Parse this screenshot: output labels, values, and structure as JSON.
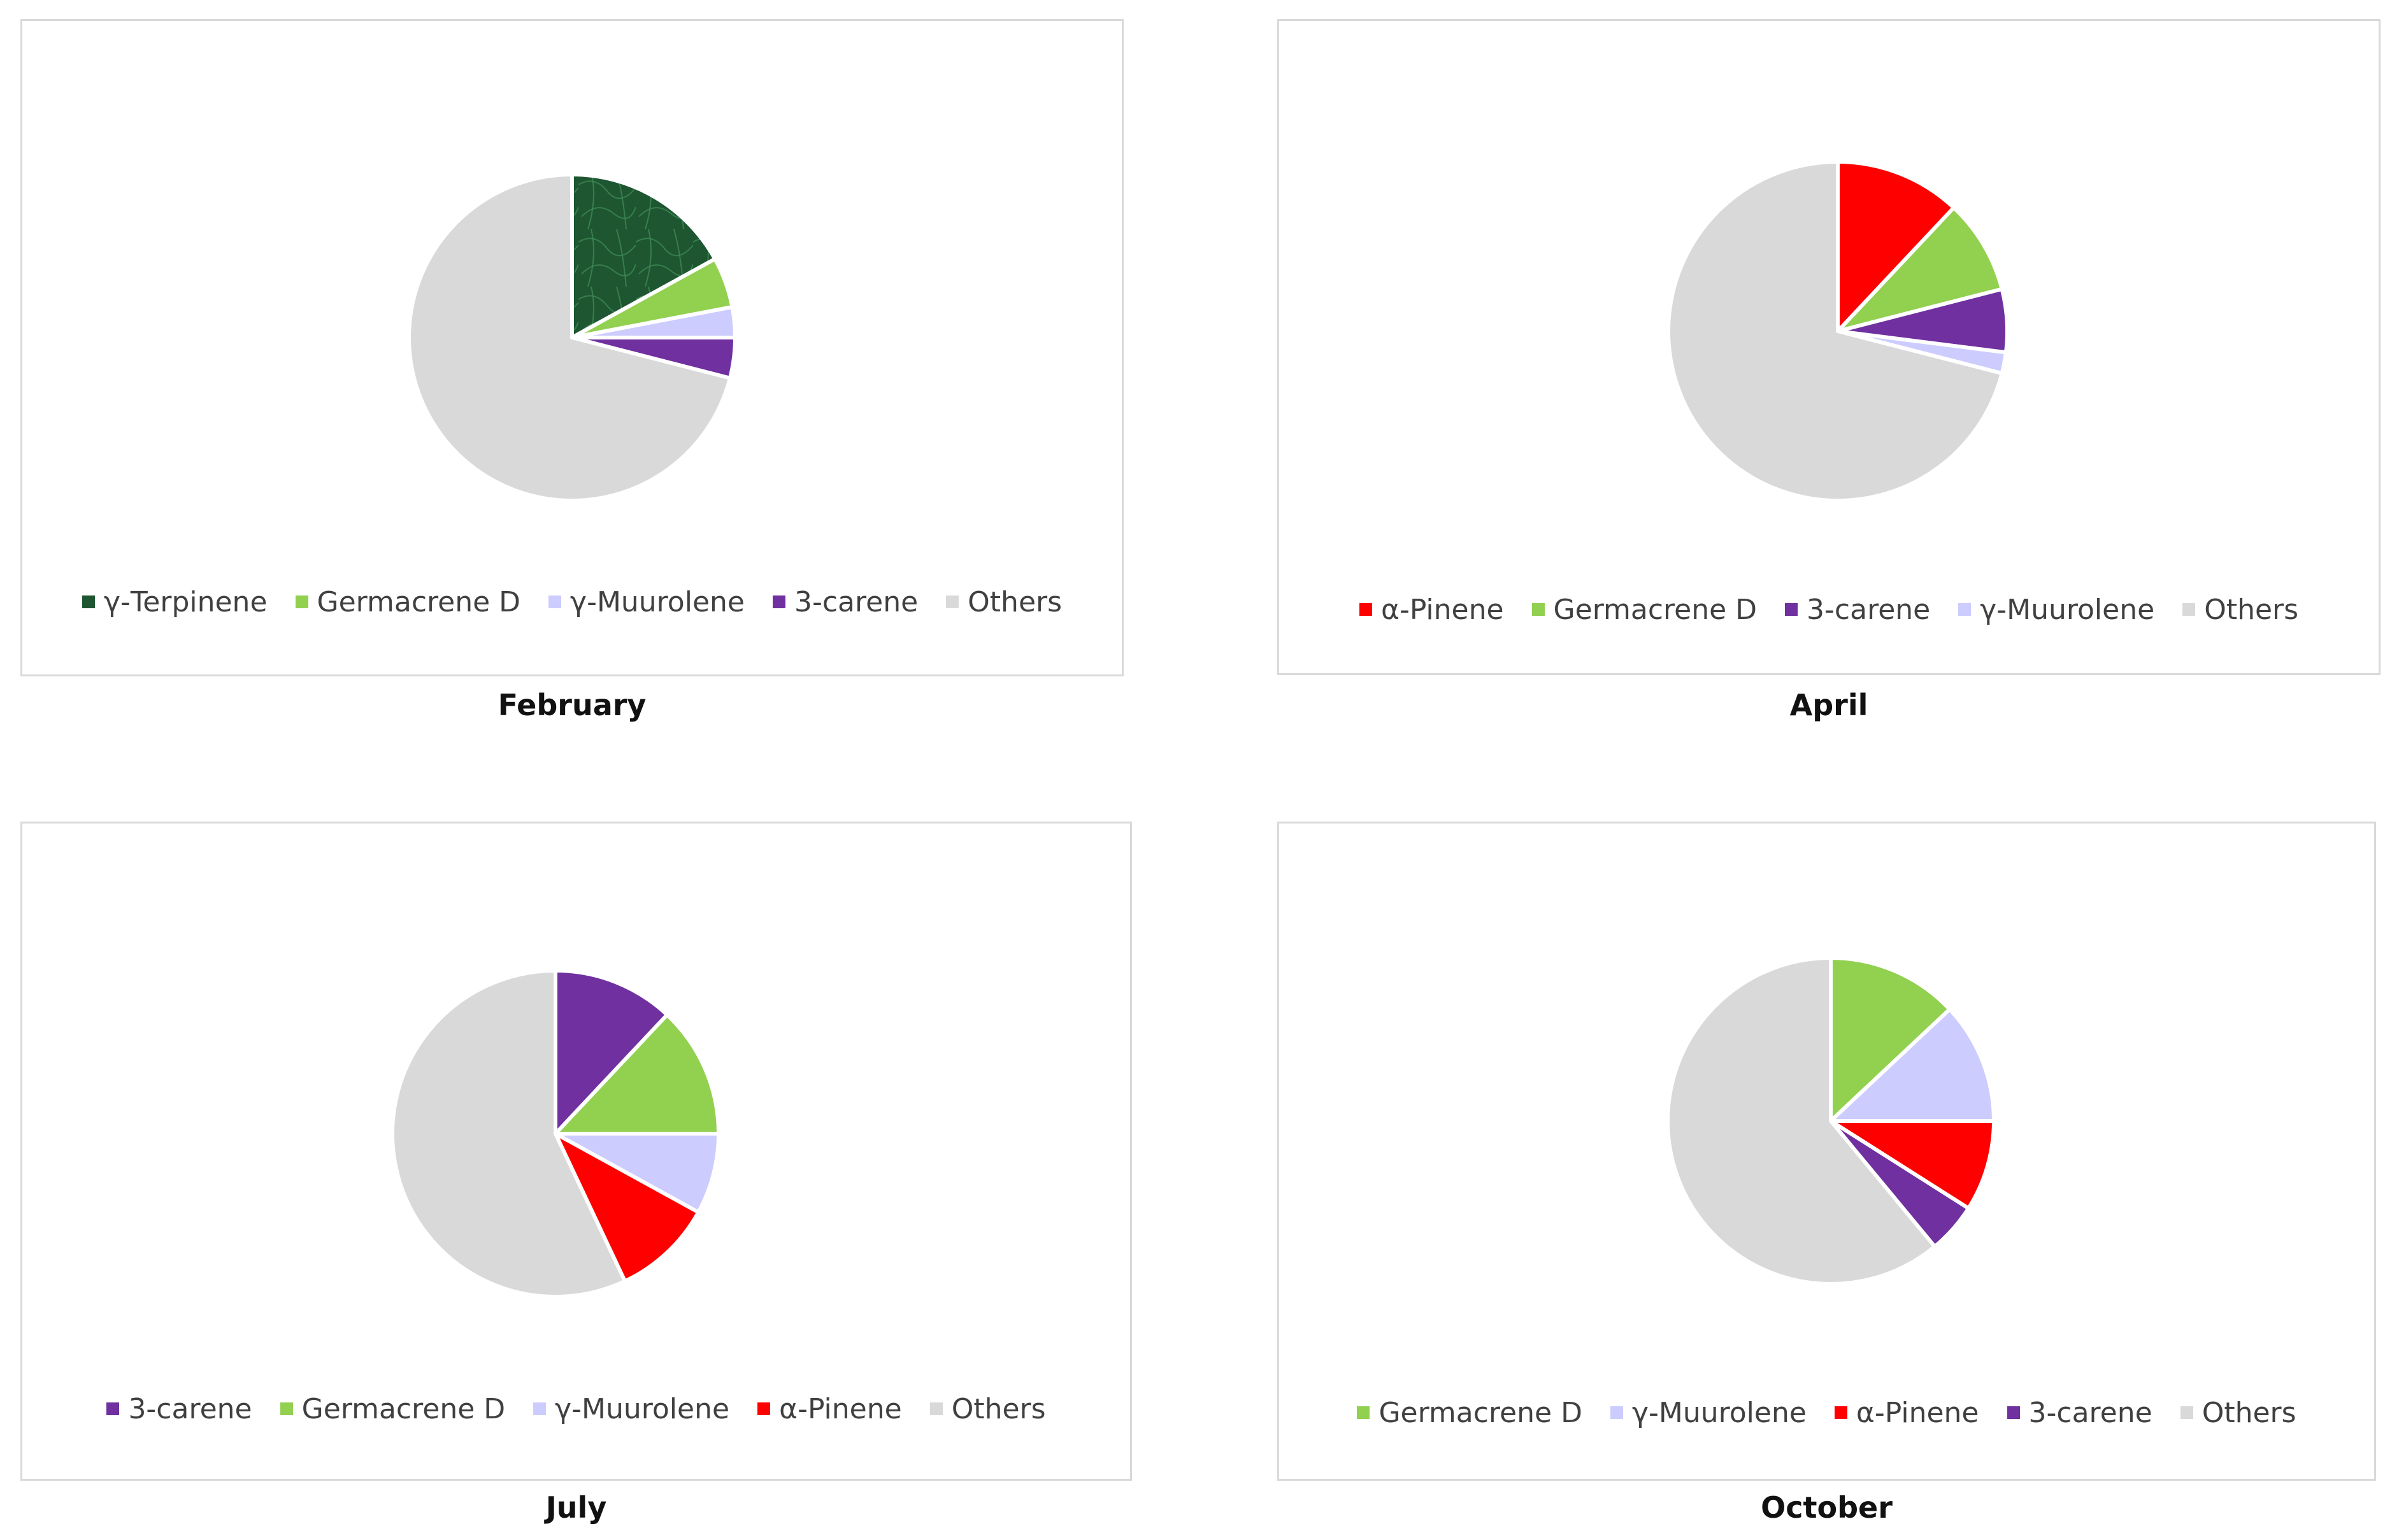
{
  "chart_data": [
    {
      "type": "pie",
      "title": "",
      "caption": "February",
      "slices": [
        {
          "label": "γ-Terpinene",
          "value": 17,
          "color": "#1e5631",
          "icon": "green-marble-texture"
        },
        {
          "label": "Germacrene D",
          "value": 5,
          "color": "#92d050"
        },
        {
          "label": "γ-Muurolene",
          "value": 3,
          "color": "#ccccff"
        },
        {
          "label": "3-carene",
          "value": 4,
          "color": "#7030a0"
        },
        {
          "label": "Others",
          "value": 71,
          "color": "#d9d9d9"
        }
      ],
      "legend_position": "bottom"
    },
    {
      "type": "pie",
      "title": "",
      "caption": "April",
      "slices": [
        {
          "label": "α-Pinene",
          "value": 12,
          "color": "#ff0000"
        },
        {
          "label": "Germacrene D",
          "value": 9,
          "color": "#92d050"
        },
        {
          "label": "3-carene",
          "value": 6,
          "color": "#7030a0"
        },
        {
          "label": "γ-Muurolene",
          "value": 2,
          "color": "#ccccff"
        },
        {
          "label": "Others",
          "value": 71,
          "color": "#d9d9d9"
        }
      ],
      "legend_position": "bottom"
    },
    {
      "type": "pie",
      "title": "",
      "caption": "July",
      "slices": [
        {
          "label": "3-carene",
          "value": 12,
          "color": "#7030a0"
        },
        {
          "label": "Germacrene D",
          "value": 13,
          "color": "#92d050"
        },
        {
          "label": "γ-Muurolene",
          "value": 8,
          "color": "#ccccff"
        },
        {
          "label": "α-Pinene",
          "value": 10,
          "color": "#ff0000"
        },
        {
          "label": "Others",
          "value": 57,
          "color": "#d9d9d9"
        }
      ],
      "legend_position": "bottom"
    },
    {
      "type": "pie",
      "title": "",
      "caption": "October",
      "slices": [
        {
          "label": "Germacrene D",
          "value": 13,
          "color": "#92d050"
        },
        {
          "label": "γ-Muurolene",
          "value": 12,
          "color": "#ccccff"
        },
        {
          "label": "α-Pinene",
          "value": 9,
          "color": "#ff0000"
        },
        {
          "label": "3-carene",
          "value": 5,
          "color": "#7030a0"
        },
        {
          "label": "Others",
          "value": 61,
          "color": "#d9d9d9"
        }
      ],
      "legend_position": "bottom"
    }
  ]
}
